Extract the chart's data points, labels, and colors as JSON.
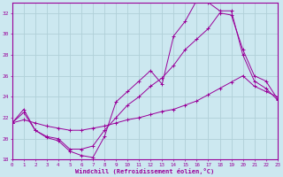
{
  "xlabel": "Windchill (Refroidissement éolien,°C)",
  "background_color": "#cce8f0",
  "grid_color": "#b0d0d8",
  "line_color": "#990099",
  "xmin": 0,
  "xmax": 23,
  "ymin": 18,
  "ymax": 33,
  "yticks": [
    18,
    20,
    22,
    24,
    26,
    28,
    30,
    32
  ],
  "xticks": [
    0,
    1,
    2,
    3,
    4,
    5,
    6,
    7,
    8,
    9,
    10,
    11,
    12,
    13,
    14,
    15,
    16,
    17,
    18,
    19,
    20,
    21,
    22,
    23
  ],
  "series1_x": [
    0,
    1,
    2,
    3,
    4,
    5,
    6,
    7,
    8,
    9,
    10,
    11,
    12,
    13,
    14,
    15,
    16,
    17,
    18,
    19,
    20,
    21,
    22,
    23
  ],
  "series1_y": [
    21.5,
    22.8,
    20.8,
    20.1,
    19.8,
    18.8,
    18.4,
    18.2,
    20.2,
    23.5,
    24.5,
    25.5,
    26.5,
    25.2,
    29.8,
    31.2,
    33.2,
    33.0,
    32.2,
    32.2,
    28.0,
    25.5,
    24.8,
    23.7
  ],
  "series2_x": [
    0,
    1,
    2,
    3,
    4,
    5,
    6,
    7,
    8,
    9,
    10,
    11,
    12,
    13,
    14,
    15,
    16,
    17,
    18,
    19,
    20,
    21,
    22,
    23
  ],
  "series2_y": [
    21.5,
    22.5,
    20.8,
    20.2,
    20.0,
    19.0,
    19.0,
    19.3,
    20.8,
    22.0,
    23.2,
    24.0,
    25.0,
    25.8,
    27.0,
    28.5,
    29.5,
    30.5,
    32.0,
    31.8,
    28.5,
    26.0,
    25.5,
    23.8
  ],
  "series3_x": [
    0,
    1,
    2,
    3,
    4,
    5,
    6,
    7,
    8,
    9,
    10,
    11,
    12,
    13,
    14,
    15,
    16,
    17,
    18,
    19,
    20,
    21,
    22,
    23
  ],
  "series3_y": [
    21.5,
    21.8,
    21.5,
    21.2,
    21.0,
    20.8,
    20.8,
    21.0,
    21.2,
    21.5,
    21.8,
    22.0,
    22.3,
    22.6,
    22.8,
    23.2,
    23.6,
    24.2,
    24.8,
    25.4,
    26.0,
    25.0,
    24.5,
    24.0
  ]
}
